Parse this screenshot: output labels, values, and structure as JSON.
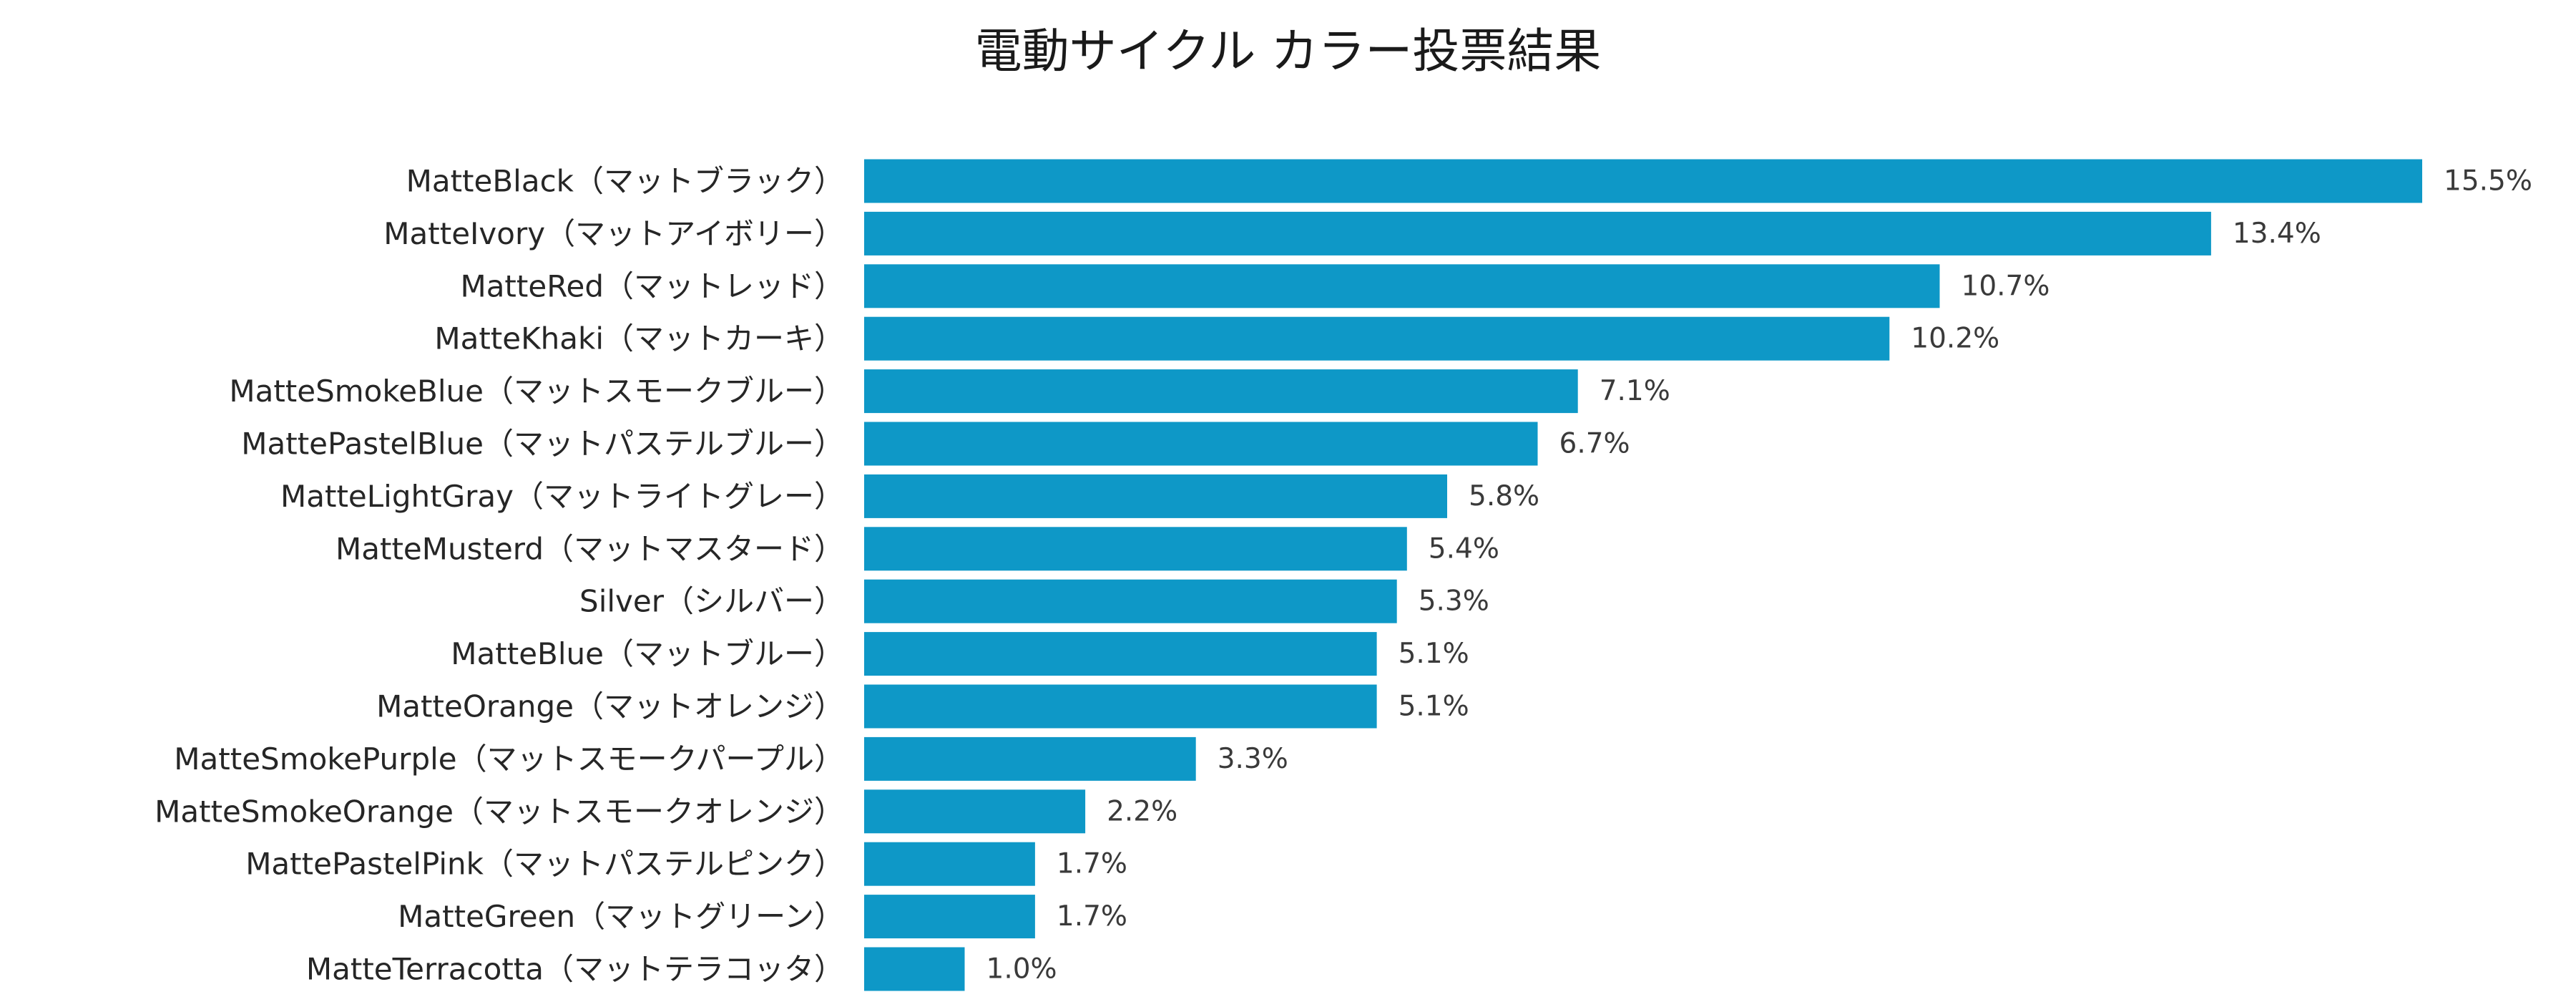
{
  "chart_data": {
    "type": "bar",
    "orientation": "horizontal",
    "title": "電動サイクル カラー投票結果",
    "xlabel": "",
    "ylabel": "",
    "bar_color": "#0e98c7",
    "grid": false,
    "legend": "none",
    "xlim": [
      0,
      15.5
    ],
    "value_suffix": "%",
    "categories": [
      "MatteBlack（マットブラック）",
      "MatteIvory（マットアイボリー）",
      "MatteRed（マットレッド）",
      "MatteKhaki（マットカーキ）",
      "MatteSmokeBlue（マットスモークブルー）",
      "MattePastelBlue（マットパステルブルー）",
      "MatteLightGray（マットライトグレー）",
      "MatteMusterd（マットマスタード）",
      "Silver（シルバー）",
      "MatteBlue（マットブルー）",
      "MatteOrange（マットオレンジ）",
      "MatteSmokePurple（マットスモークパープル）",
      "MatteSmokeOrange（マットスモークオレンジ）",
      "MattePastelPink（マットパステルピンク）",
      "MatteGreen（マットグリーン）",
      "MatteTerracotta（マットテラコッタ）"
    ],
    "values": [
      15.5,
      13.4,
      10.7,
      10.2,
      7.1,
      6.7,
      5.8,
      5.4,
      5.3,
      5.1,
      5.1,
      3.3,
      2.2,
      1.7,
      1.7,
      1.0
    ],
    "value_labels": [
      "15.5%",
      "13.4%",
      "10.7%",
      "10.2%",
      "7.1%",
      "6.7%",
      "5.8%",
      "5.4%",
      "5.3%",
      "5.1%",
      "5.1%",
      "3.3%",
      "2.2%",
      "1.7%",
      "1.7%",
      "1.0%"
    ]
  }
}
